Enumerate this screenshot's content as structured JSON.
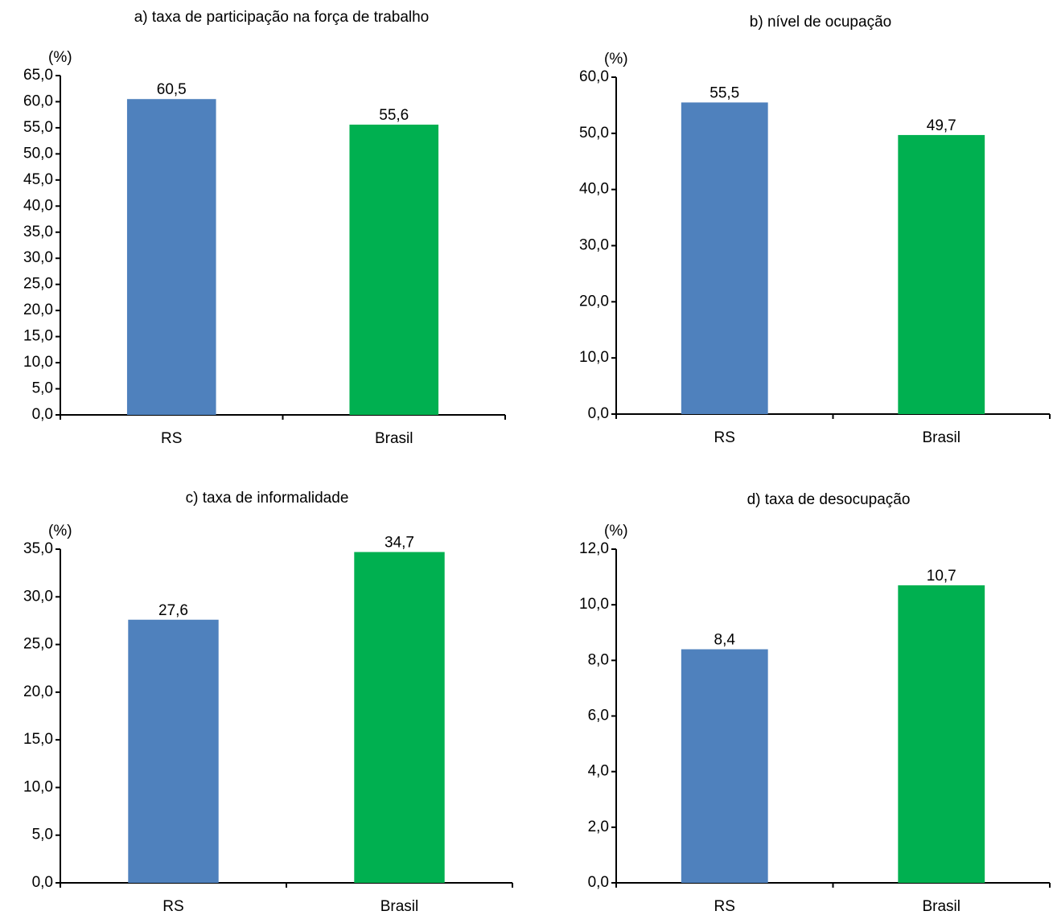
{
  "chart_data": [
    {
      "type": "bar",
      "title": "a) taxa de participação na força de trabalho",
      "ylabel": "(%)",
      "categories": [
        "RS",
        "Brasil"
      ],
      "values": [
        60.5,
        55.6
      ],
      "value_labels": [
        "60,5",
        "55,6"
      ],
      "colors": [
        "#4f81bd",
        "#00b050"
      ],
      "ylim": [
        0,
        65
      ],
      "yticks": [
        {
          "value": 0,
          "label": "0,0"
        },
        {
          "value": 5,
          "label": "5,0"
        },
        {
          "value": 10,
          "label": "10,0"
        },
        {
          "value": 15,
          "label": "15,0"
        },
        {
          "value": 20,
          "label": "20,0"
        },
        {
          "value": 25,
          "label": "25,0"
        },
        {
          "value": 30,
          "label": "30,0"
        },
        {
          "value": 35,
          "label": "35,0"
        },
        {
          "value": 40,
          "label": "40,0"
        },
        {
          "value": 45,
          "label": "45,0"
        },
        {
          "value": 50,
          "label": "50,0"
        },
        {
          "value": 55,
          "label": "55,0"
        },
        {
          "value": 60,
          "label": "60,0"
        },
        {
          "value": 65,
          "label": "65,0"
        }
      ]
    },
    {
      "type": "bar",
      "title": "b) nível de ocupação",
      "ylabel": "(%)",
      "categories": [
        "RS",
        "Brasil"
      ],
      "values": [
        55.5,
        49.7
      ],
      "value_labels": [
        "55,5",
        "49,7"
      ],
      "colors": [
        "#4f81bd",
        "#00b050"
      ],
      "ylim": [
        0,
        60
      ],
      "yticks": [
        {
          "value": 0,
          "label": "0,0"
        },
        {
          "value": 10,
          "label": "10,0"
        },
        {
          "value": 20,
          "label": "20,0"
        },
        {
          "value": 30,
          "label": "30,0"
        },
        {
          "value": 40,
          "label": "40,0"
        },
        {
          "value": 50,
          "label": "50,0"
        },
        {
          "value": 60,
          "label": "60,0"
        }
      ]
    },
    {
      "type": "bar",
      "title": "c) taxa de informalidade",
      "ylabel": "(%)",
      "categories": [
        "RS",
        "Brasil"
      ],
      "values": [
        27.6,
        34.7
      ],
      "value_labels": [
        "27,6",
        "34,7"
      ],
      "colors": [
        "#4f81bd",
        "#00b050"
      ],
      "ylim": [
        0,
        35
      ],
      "yticks": [
        {
          "value": 0,
          "label": "0,0"
        },
        {
          "value": 5,
          "label": "5,0"
        },
        {
          "value": 10,
          "label": "10,0"
        },
        {
          "value": 15,
          "label": "15,0"
        },
        {
          "value": 20,
          "label": "20,0"
        },
        {
          "value": 25,
          "label": "25,0"
        },
        {
          "value": 30,
          "label": "30,0"
        },
        {
          "value": 35,
          "label": "35,0"
        }
      ]
    },
    {
      "type": "bar",
      "title": "d) taxa de desocupação",
      "ylabel": "(%)",
      "categories": [
        "RS",
        "Brasil"
      ],
      "values": [
        8.4,
        10.7
      ],
      "value_labels": [
        "8,4",
        "10,7"
      ],
      "colors": [
        "#4f81bd",
        "#00b050"
      ],
      "ylim": [
        0,
        12
      ],
      "yticks": [
        {
          "value": 0,
          "label": "0,0"
        },
        {
          "value": 2,
          "label": "2,0"
        },
        {
          "value": 4,
          "label": "4,0"
        },
        {
          "value": 6,
          "label": "6,0"
        },
        {
          "value": 8,
          "label": "8,0"
        },
        {
          "value": 10,
          "label": "10,0"
        },
        {
          "value": 12,
          "label": "12,0"
        }
      ]
    }
  ]
}
